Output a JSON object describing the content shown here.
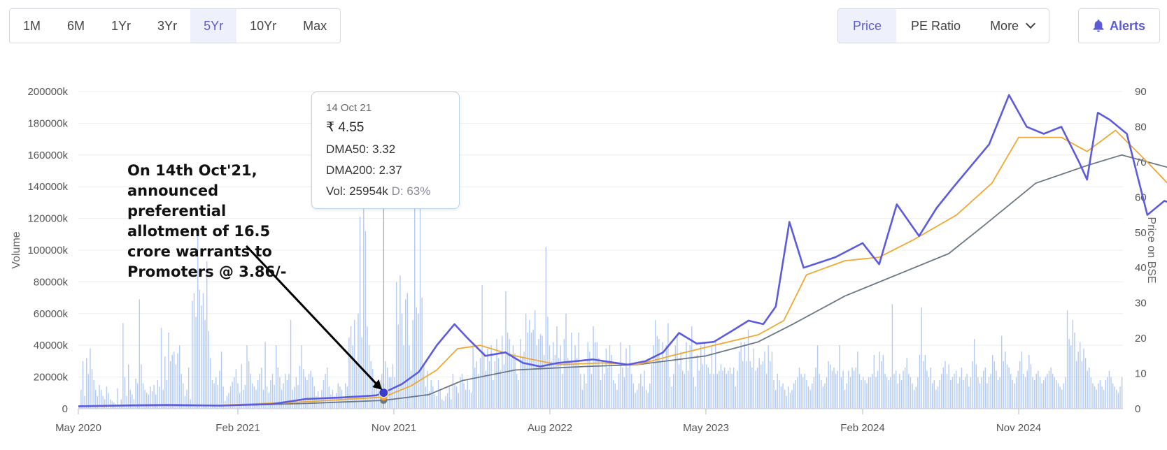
{
  "range_buttons": [
    {
      "label": "1M",
      "active": false
    },
    {
      "label": "6M",
      "active": false
    },
    {
      "label": "1Yr",
      "active": false
    },
    {
      "label": "3Yr",
      "active": false
    },
    {
      "label": "5Yr",
      "active": true
    },
    {
      "label": "10Yr",
      "active": false
    },
    {
      "label": "Max",
      "active": false
    }
  ],
  "type_buttons": {
    "price": "Price",
    "pe_ratio": "PE Ratio",
    "more": "More"
  },
  "alerts_label": "Alerts",
  "tooltip": {
    "date": "14 Oct 21",
    "price": "₹ 4.55",
    "dma50": "DMA50: 3.32",
    "dma200": "DMA200: 2.37",
    "vol": "Vol: 25954k",
    "delivery": "D: 63%"
  },
  "annotation": "On 14th Oct'21, announced preferential allotment of 16.5 crore warrants to Promoters @ 3.86/-",
  "colors": {
    "accent": "#5b5bd6",
    "price": "#5b5be0",
    "dma50": "#f0a830",
    "dma200": "#6b7885",
    "volume": "#b3cbf5"
  },
  "chart_data": {
    "type": "line",
    "x_start": "2020-05-01",
    "x_end": "2025-04-01",
    "xticks": [
      "May 2020",
      "Feb 2021",
      "Nov 2021",
      "Aug 2022",
      "May 2023",
      "Feb 2024",
      "Nov 2024"
    ],
    "ylabel_left": "Volume",
    "ylabel_right": "Price on BSE",
    "y_left_ticks": [
      "0",
      "20000k",
      "40000k",
      "60000k",
      "80000k",
      "100000k",
      "120000k",
      "140000k",
      "160000k",
      "180000k",
      "200000k"
    ],
    "y_right_ticks": [
      "0",
      "10",
      "20",
      "30",
      "40",
      "50",
      "60",
      "70",
      "80",
      "90"
    ],
    "ylim_left": [
      0,
      200000
    ],
    "ylim_right": [
      0,
      90
    ],
    "volume_unit": "k",
    "marker": {
      "date": "2021-10-14",
      "price": 4.55,
      "dma50": 3.32,
      "dma200": 2.37,
      "volume": 25954
    },
    "series": [
      {
        "name": "Price",
        "points": [
          [
            "2020-05-01",
            0.7
          ],
          [
            "2020-08-01",
            1.0
          ],
          [
            "2020-10-01",
            1.1
          ],
          [
            "2021-01-01",
            0.9
          ],
          [
            "2021-04-01",
            1.3
          ],
          [
            "2021-06-01",
            2.8
          ],
          [
            "2021-08-01",
            3.2
          ],
          [
            "2021-10-01",
            3.8
          ],
          [
            "2021-10-14",
            4.55
          ],
          [
            "2021-11-15",
            7.0
          ],
          [
            "2021-12-15",
            10.5
          ],
          [
            "2022-01-15",
            18.0
          ],
          [
            "2022-02-15",
            24.0
          ],
          [
            "2022-03-10",
            20.0
          ],
          [
            "2022-04-10",
            15.0
          ],
          [
            "2022-05-15",
            16.0
          ],
          [
            "2022-06-15",
            13.0
          ],
          [
            "2022-07-15",
            12.0
          ],
          [
            "2022-08-15",
            13.0
          ],
          [
            "2022-10-15",
            14.0
          ],
          [
            "2022-12-15",
            12.5
          ],
          [
            "2023-01-15",
            13.5
          ],
          [
            "2023-02-15",
            16.0
          ],
          [
            "2023-03-15",
            21.5
          ],
          [
            "2023-04-15",
            18.5
          ],
          [
            "2023-05-15",
            19.0
          ],
          [
            "2023-06-15",
            22.0
          ],
          [
            "2023-07-15",
            25.0
          ],
          [
            "2023-08-10",
            24.0
          ],
          [
            "2023-09-01",
            29.0
          ],
          [
            "2023-09-25",
            53.0
          ],
          [
            "2023-10-20",
            40.0
          ],
          [
            "2023-12-15",
            43.0
          ],
          [
            "2024-02-01",
            47.0
          ],
          [
            "2024-03-01",
            41.0
          ],
          [
            "2024-04-01",
            58.0
          ],
          [
            "2024-05-10",
            49.0
          ],
          [
            "2024-06-10",
            57.0
          ],
          [
            "2024-07-10",
            63.0
          ],
          [
            "2024-08-10",
            69.0
          ],
          [
            "2024-09-10",
            75.0
          ],
          [
            "2024-10-15",
            89.0
          ],
          [
            "2024-11-15",
            80.0
          ],
          [
            "2024-12-15",
            78.0
          ],
          [
            "2025-01-15",
            80.0
          ],
          [
            "2025-02-15",
            70.0
          ],
          [
            "2025-03-01",
            65.0
          ],
          [
            "2025-03-20",
            84.0
          ],
          [
            "2025-04-10",
            82.0
          ],
          [
            "2025-05-10",
            78.0
          ],
          [
            "2025-06-15",
            55.0
          ],
          [
            "2025-07-15",
            59.0
          ],
          [
            "2025-08-15",
            57.0
          ],
          [
            "2025-09-01",
            67.0
          ]
        ]
      },
      {
        "name": "DMA50",
        "points": [
          [
            "2020-05-01",
            0.7
          ],
          [
            "2021-01-01",
            1.0
          ],
          [
            "2021-06-01",
            2.0
          ],
          [
            "2021-10-14",
            3.32
          ],
          [
            "2021-12-01",
            6.5
          ],
          [
            "2022-01-15",
            11.0
          ],
          [
            "2022-02-20",
            17.0
          ],
          [
            "2022-04-01",
            18.0
          ],
          [
            "2022-06-01",
            15.0
          ],
          [
            "2022-08-15",
            12.5
          ],
          [
            "2022-11-01",
            13.0
          ],
          [
            "2023-01-01",
            12.5
          ],
          [
            "2023-03-01",
            15.0
          ],
          [
            "2023-05-15",
            18.0
          ],
          [
            "2023-08-01",
            21.0
          ],
          [
            "2023-09-15",
            25.0
          ],
          [
            "2023-10-25",
            38.0
          ],
          [
            "2024-01-01",
            42.0
          ],
          [
            "2024-03-01",
            43.0
          ],
          [
            "2024-05-01",
            48.0
          ],
          [
            "2024-07-15",
            55.0
          ],
          [
            "2024-09-15",
            64.0
          ],
          [
            "2024-11-01",
            77.0
          ],
          [
            "2025-01-15",
            77.0
          ],
          [
            "2025-03-01",
            73.0
          ],
          [
            "2025-04-20",
            79.0
          ],
          [
            "2025-06-15",
            70.0
          ],
          [
            "2025-08-01",
            62.0
          ],
          [
            "2025-09-01",
            62.0
          ]
        ]
      },
      {
        "name": "DMA200",
        "points": [
          [
            "2020-05-01",
            0.8
          ],
          [
            "2021-01-01",
            0.9
          ],
          [
            "2021-06-01",
            1.5
          ],
          [
            "2021-10-14",
            2.37
          ],
          [
            "2022-01-01",
            4.0
          ],
          [
            "2022-03-01",
            8.0
          ],
          [
            "2022-06-01",
            11.0
          ],
          [
            "2022-10-01",
            12.0
          ],
          [
            "2023-01-01",
            12.5
          ],
          [
            "2023-05-01",
            15.0
          ],
          [
            "2023-08-01",
            19.0
          ],
          [
            "2023-10-01",
            24.0
          ],
          [
            "2024-01-01",
            32.0
          ],
          [
            "2024-04-01",
            38.0
          ],
          [
            "2024-07-01",
            44.0
          ],
          [
            "2024-09-01",
            52.0
          ],
          [
            "2024-12-01",
            64.0
          ],
          [
            "2025-03-01",
            69.0
          ],
          [
            "2025-05-01",
            72.0
          ],
          [
            "2025-08-01",
            68.0
          ],
          [
            "2025-09-01",
            68.0
          ]
        ]
      },
      {
        "name": "Volume",
        "values": [
          2000,
          12000,
          30000,
          8000,
          32000,
          22000,
          38000,
          25000,
          18000,
          12000,
          8000,
          15000,
          12000,
          8000,
          6000,
          14000,
          10000,
          6000,
          5000,
          4000,
          3000,
          13000,
          2000,
          6000,
          54000,
          20000,
          8000,
          28000,
          12000,
          9000,
          6000,
          19000,
          16000,
          69000,
          28000,
          16000,
          12000,
          10000,
          9000,
          14000,
          11000,
          15000,
          9000,
          18000,
          14000,
          51000,
          12000,
          33000,
          18000,
          48000,
          30000,
          34000,
          36000,
          28000,
          35000,
          40000,
          22000,
          16000,
          8000,
          12000,
          26000,
          6000,
          68000,
          73000,
          58000,
          114000,
          75000,
          65000,
          73000,
          56000,
          93000,
          49000,
          32000,
          18000,
          16000,
          20000,
          15000,
          24000,
          36000,
          14000,
          5000,
          8000,
          10000,
          14000,
          17000,
          20000,
          25000,
          16000,
          10000,
          28000,
          12000,
          15000,
          40000,
          30000,
          22000,
          16000,
          14000,
          12000,
          18000,
          22000,
          26000,
          12000,
          42000,
          14000,
          10000,
          18000,
          22000,
          15000,
          40000,
          26000,
          20000,
          12000,
          16000,
          22000,
          18000,
          22000,
          56000,
          12000,
          14000,
          20000,
          15000,
          27000,
          40000,
          25000,
          20000,
          18000,
          22000,
          24000,
          20000,
          14000,
          8000,
          11000,
          6000,
          12000,
          18000,
          22000,
          26000,
          14000,
          9000,
          12000,
          8000,
          10000,
          16000,
          14000,
          12000,
          6000,
          16000,
          14000,
          45000,
          52000,
          40000,
          56000,
          30000,
          60000,
          121000,
          45000,
          133000,
          112000,
          52000,
          40000,
          30000,
          25000,
          16000,
          14000,
          12000,
          18000,
          22000,
          16000,
          30000,
          26000,
          20000,
          20000,
          28000,
          20000,
          80000,
          53000,
          84000,
          60000,
          40000,
          69000,
          73000,
          40000,
          24000,
          56000,
          130000,
          64000,
          60000,
          188000,
          70000,
          28000,
          14000,
          24000,
          11000,
          18000,
          14000,
          9000,
          8000,
          18000,
          12000,
          6000,
          5000,
          8000,
          10000,
          14000,
          6000,
          22000,
          16000,
          14000,
          10000,
          20000,
          22000,
          16000,
          12000,
          18000,
          12000,
          10000,
          40000,
          26000,
          30000,
          22000,
          32000,
          78000,
          36000,
          24000,
          38000,
          30000,
          40000,
          18000,
          30000,
          44000,
          32000,
          24000,
          46000,
          28000,
          74000,
          48000,
          44000,
          32000,
          40000,
          35000,
          22000,
          18000,
          44000,
          32000,
          36000,
          60000,
          48000,
          56000,
          48000,
          50000,
          62000,
          40000,
          44000,
          47000,
          46000,
          34000,
          102000,
          58000,
          40000,
          30000,
          42000,
          34000,
          52000,
          32000,
          40000,
          22000,
          44000,
          60000,
          32000,
          30000,
          48000,
          28000,
          40000,
          32000,
          48000,
          22000,
          12000,
          22000,
          16000,
          42000,
          36000,
          22000,
          52000,
          42000,
          42000,
          32000,
          18000,
          30000,
          22000,
          38000,
          26000,
          40000,
          34000,
          18000,
          16000,
          12000,
          22000,
          42000,
          26000,
          20000,
          38000,
          26000,
          40000,
          22000,
          16000,
          10000,
          12000,
          16000,
          22000,
          14000,
          24000,
          12000,
          10000,
          16000,
          28000,
          40000,
          56000,
          46000,
          44000,
          30000,
          42000,
          30000,
          40000,
          54000,
          20000,
          14000,
          22000,
          40000,
          46000,
          28000,
          36000,
          24000,
          22000,
          42000,
          24000,
          40000,
          52000,
          20000,
          14000,
          34000,
          24000,
          40000,
          28000,
          42000,
          28000,
          26000,
          22000,
          40000,
          22000,
          42000,
          22000,
          24000,
          28000,
          24000,
          26000,
          22000,
          24000,
          26000,
          22000,
          26000,
          14000,
          24000,
          36000,
          42000,
          30000,
          42000,
          30000,
          50000,
          30000,
          26000,
          38000,
          24000,
          26000,
          32000,
          28000,
          30000,
          36000,
          22000,
          40000,
          30000,
          36000,
          18000,
          12000,
          22000,
          18000,
          14000,
          16000,
          12000,
          8000,
          14000,
          10000,
          12000,
          16000,
          18000,
          20000,
          26000,
          22000,
          20000,
          22000,
          18000,
          14000,
          12000,
          16000,
          20000,
          26000,
          40000,
          22000,
          18000,
          14000,
          16000,
          20000,
          30000,
          28000,
          24000,
          26000,
          22000,
          24000,
          40000,
          20000,
          24000,
          12000,
          16000,
          24000,
          20000,
          26000,
          24000,
          26000,
          36000,
          22000,
          18000,
          20000,
          18000,
          16000,
          20000,
          20000,
          22000,
          34000,
          20000,
          24000,
          36000,
          30000,
          34000,
          22000,
          20000,
          18000,
          20000,
          66000,
          22000,
          24000,
          16000,
          22000,
          18000,
          24000,
          26000,
          32000,
          22000,
          20000,
          16000,
          12000,
          14000,
          20000,
          34000,
          64000,
          30000,
          34000,
          24000,
          20000,
          26000,
          16000,
          18000,
          12000,
          14000,
          18000,
          22000,
          26000,
          30000,
          22000,
          28000,
          18000,
          20000,
          22000,
          24000,
          16000,
          20000,
          26000,
          18000,
          20000,
          22000,
          14000,
          20000,
          30000,
          44000,
          28000,
          20000,
          16000,
          20000,
          24000,
          26000,
          16000,
          20000,
          22000,
          34000,
          30000,
          24000,
          18000,
          20000,
          46000,
          30000,
          36000,
          28000,
          26000,
          22000,
          18000,
          16000,
          20000,
          24000,
          30000,
          36000,
          22000,
          20000,
          24000,
          34000,
          28000,
          20000,
          18000,
          22000,
          24000,
          20000,
          16000,
          18000,
          20000,
          22000,
          24000,
          26000,
          22000,
          20000,
          18000,
          16000,
          14000,
          12000,
          16000,
          20000,
          62000,
          44000,
          40000,
          56000,
          48000,
          30000,
          36000,
          42000,
          30000,
          38000,
          32000,
          24000,
          26000,
          20000,
          16000,
          14000,
          12000,
          16000,
          18000,
          14000,
          12000,
          18000,
          20000,
          24000,
          20000,
          16000,
          14000,
          12000,
          10000,
          14000,
          20000
        ]
      }
    ]
  }
}
